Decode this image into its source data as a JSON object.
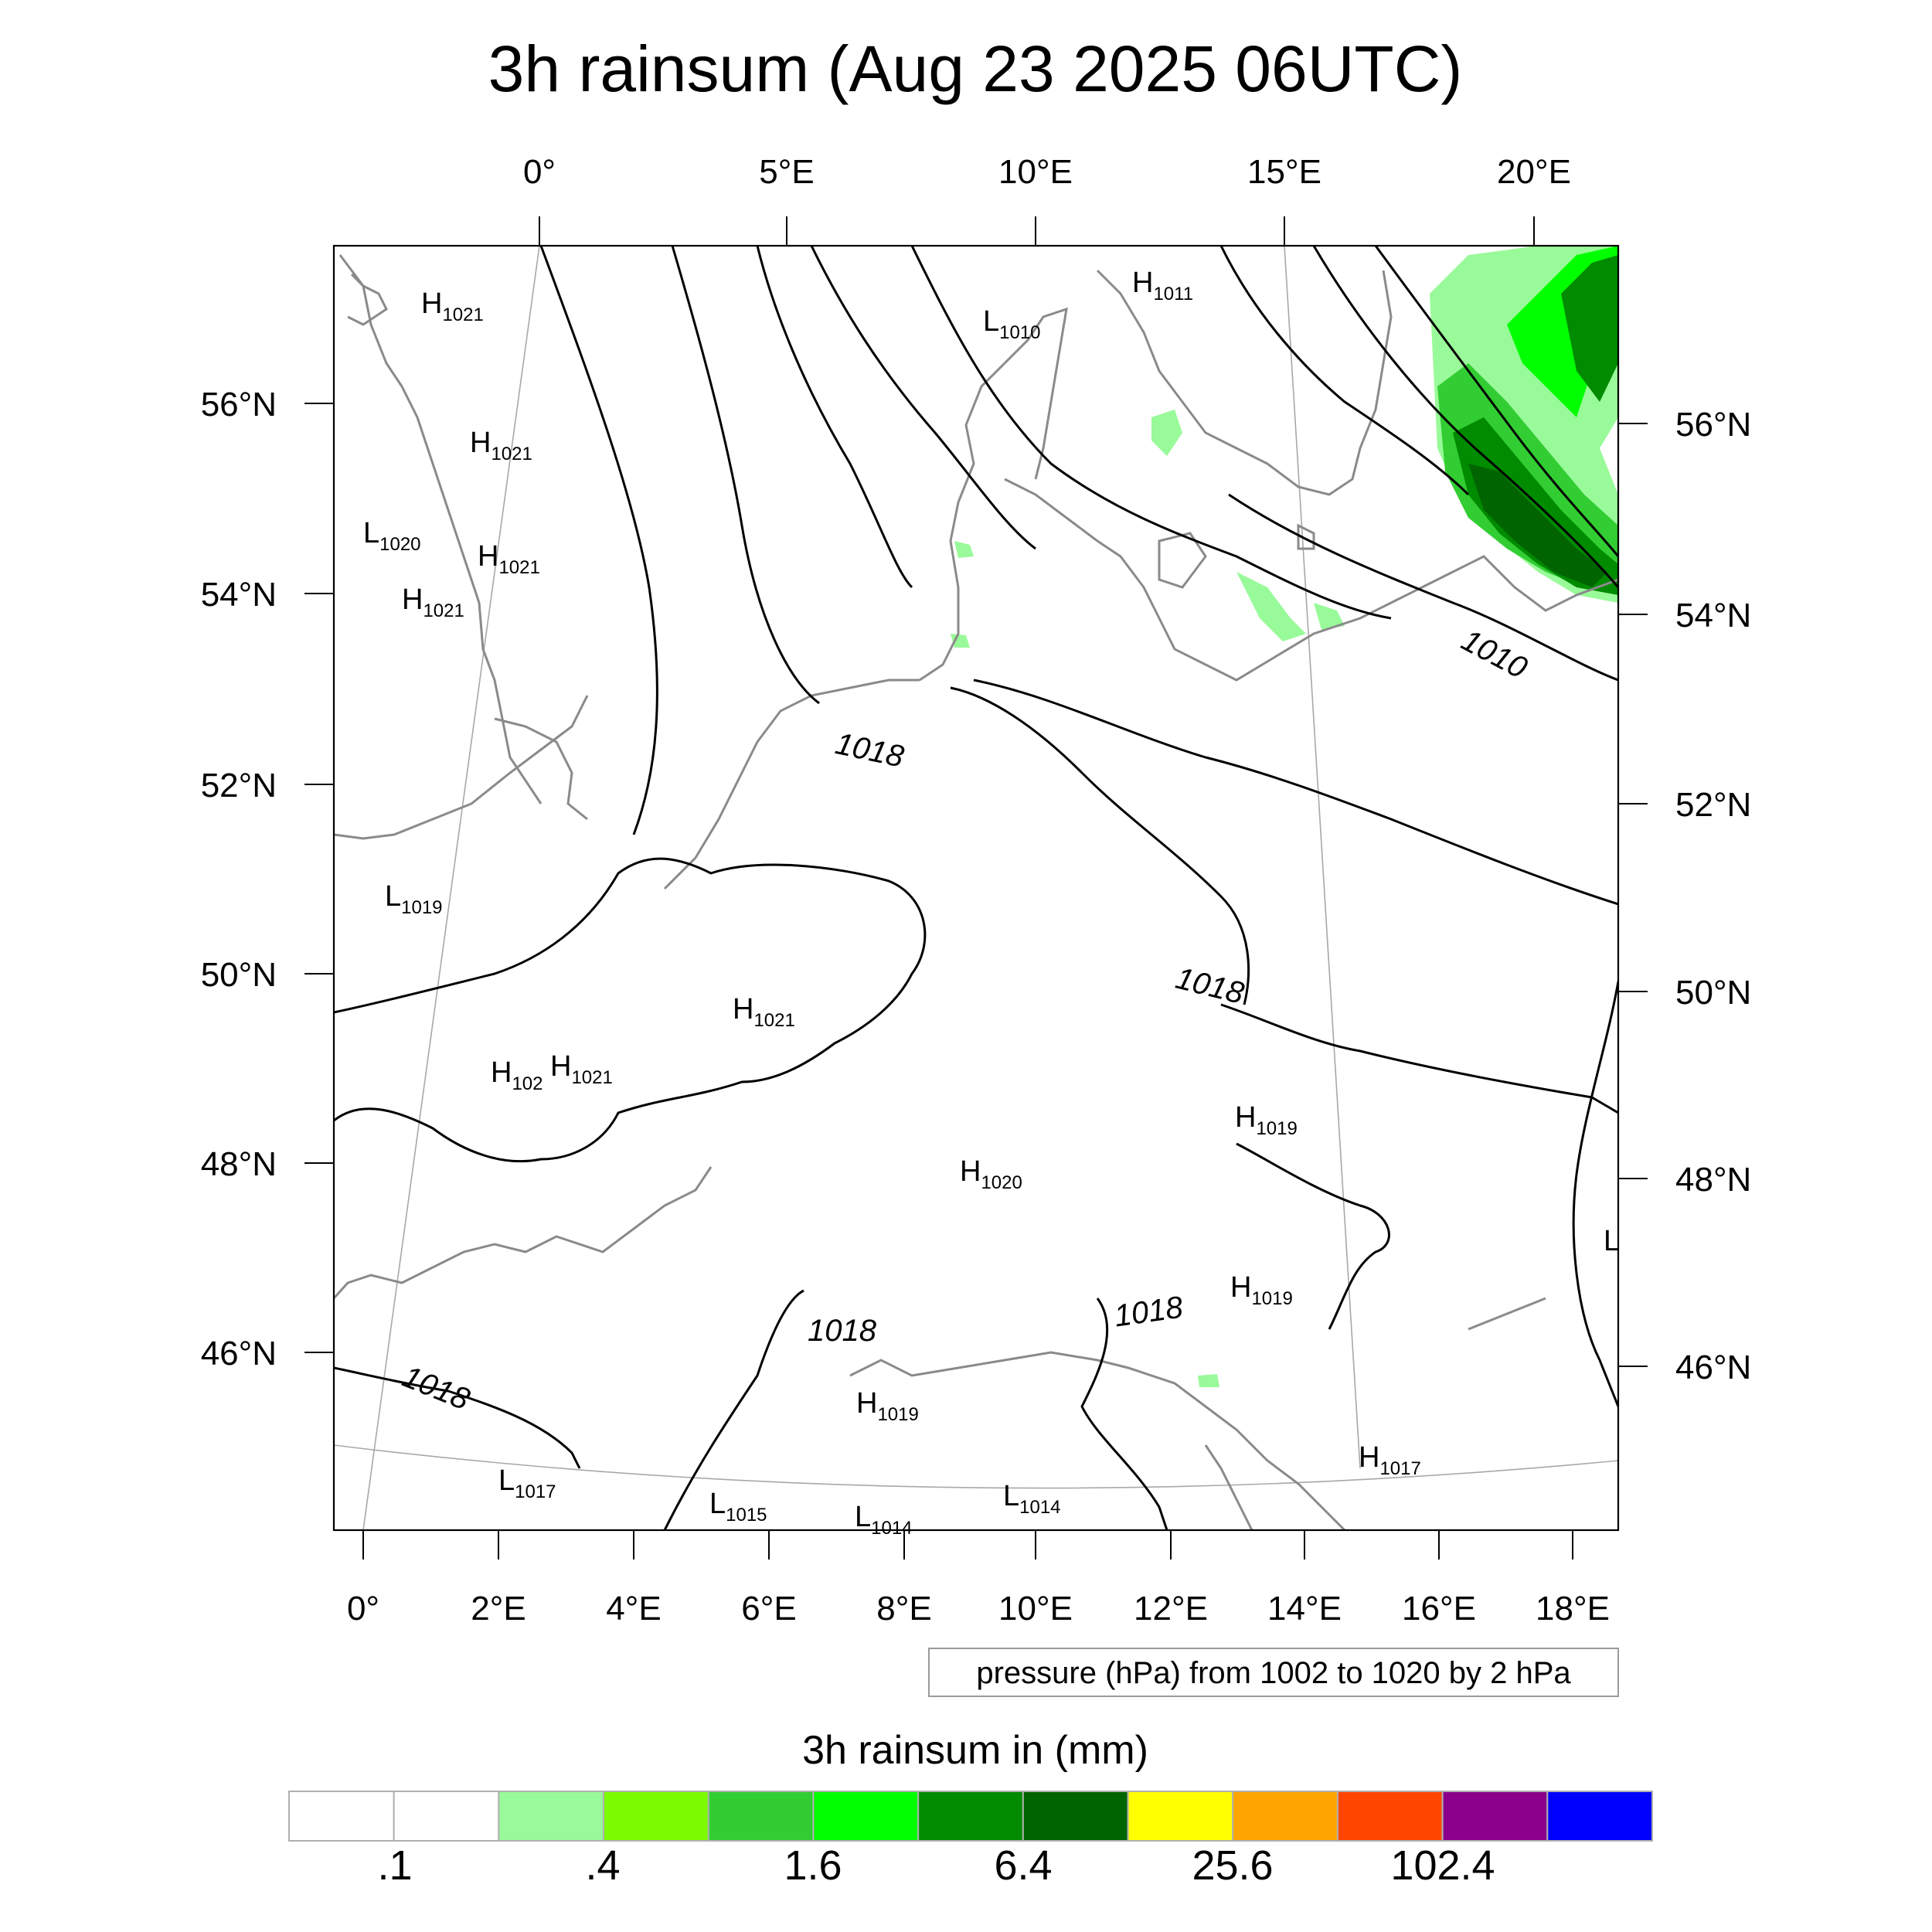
{
  "title": "3h rainsum (Aug 23 2025 06UTC)",
  "map": {
    "top_lon_labels": [
      "0°",
      "5°E",
      "10°E",
      "15°E",
      "20°E"
    ],
    "bottom_lon_labels": [
      "0°",
      "2°E",
      "4°E",
      "6°E",
      "8°E",
      "10°E",
      "12°E",
      "14°E",
      "16°E",
      "18°E"
    ],
    "left_lat_labels": [
      "56°N",
      "54°N",
      "52°N",
      "50°N",
      "48°N",
      "46°N"
    ],
    "right_lat_labels": [
      "56°N",
      "54°N",
      "52°N",
      "50°N",
      "48°N",
      "46°N"
    ],
    "pressure_centers": [
      {
        "type": "H",
        "value": "1021"
      },
      {
        "type": "H",
        "value": "1021"
      },
      {
        "type": "L",
        "value": "1020"
      },
      {
        "type": "H",
        "value": "1021"
      },
      {
        "type": "H",
        "value": "1021"
      },
      {
        "type": "L",
        "value": "1019"
      },
      {
        "type": "H",
        "value": "1021"
      },
      {
        "type": "H",
        "value": "102"
      },
      {
        "type": "H",
        "value": "1021"
      },
      {
        "type": "H",
        "value": "1011"
      },
      {
        "type": "L",
        "value": "1010"
      },
      {
        "type": "H",
        "value": "1019"
      },
      {
        "type": "H",
        "value": "1020"
      },
      {
        "type": "H",
        "value": "1019"
      },
      {
        "type": "H",
        "value": "1019"
      },
      {
        "type": "H",
        "value": "1017"
      },
      {
        "type": "L",
        "value": "1017"
      },
      {
        "type": "L",
        "value": "1015"
      },
      {
        "type": "L",
        "value": "1014"
      },
      {
        "type": "L",
        "value": "1014"
      },
      {
        "type": "L",
        "value": ""
      }
    ],
    "contour_labels": [
      "1018",
      "1018",
      "1018",
      "1018",
      "1018",
      "1010"
    ]
  },
  "info_box": "pressure (hPa) from 1002 to 1020 by 2 hPa",
  "colorbar": {
    "title": "3h rainsum in (mm)",
    "colors": [
      "#ffffff",
      "#ffffff",
      "#99fa99",
      "#7cfc00",
      "#32cd32",
      "#00ff00",
      "#008b00",
      "#006400",
      "#ffff00",
      "#ffa500",
      "#ff4500",
      "#8b008b",
      "#0000ff"
    ],
    "tick_labels": [
      ".1",
      ".4",
      "1.6",
      "6.4",
      "25.6",
      "102.4"
    ]
  },
  "rain_colors": {
    "light": "#99fa99",
    "mid": "#32cd32",
    "bright": "#00ff00",
    "dark": "#008b00",
    "darkest": "#006400"
  }
}
